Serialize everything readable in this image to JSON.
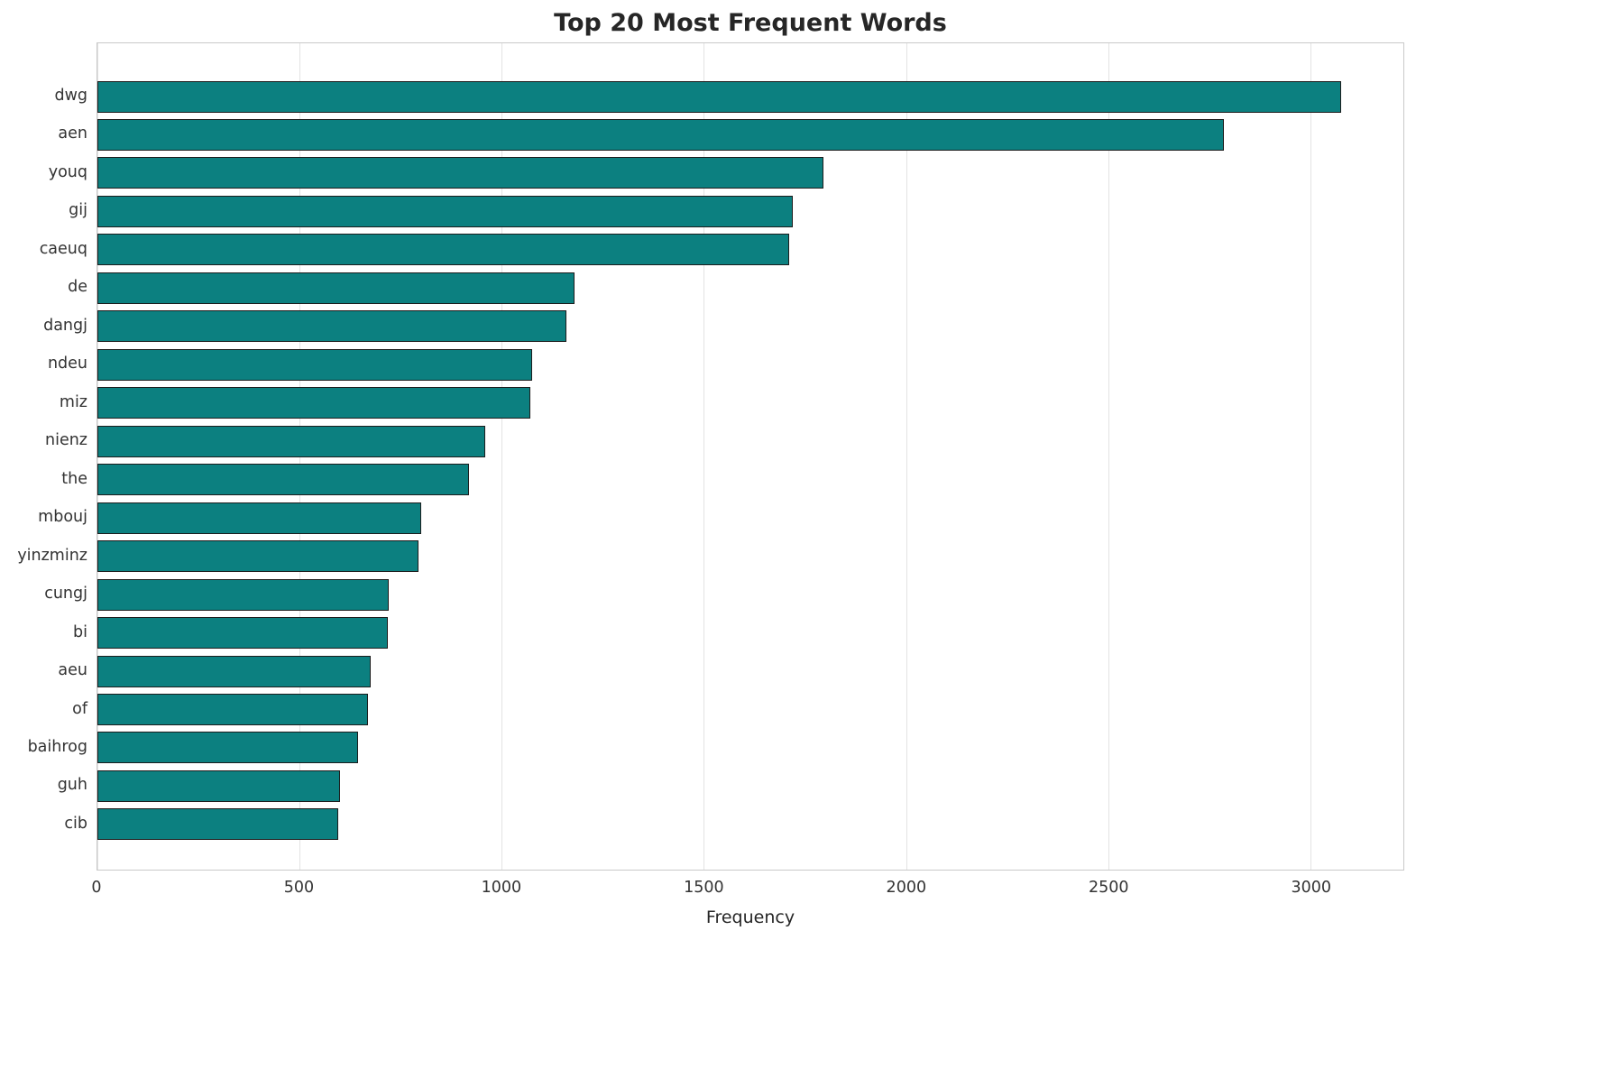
{
  "chart_data": {
    "type": "bar",
    "orientation": "horizontal",
    "title": "Top 20 Most Frequent Words",
    "xlabel": "Frequency",
    "ylabel": "",
    "categories": [
      "dwg",
      "aen",
      "youq",
      "gij",
      "caeuq",
      "de",
      "dangj",
      "ndeu",
      "miz",
      "nienz",
      "the",
      "mbouj",
      "yinzminz",
      "cungj",
      "bi",
      "aeu",
      "of",
      "baihrog",
      "guh",
      "cib"
    ],
    "values": [
      3075,
      2785,
      1795,
      1720,
      1710,
      1180,
      1160,
      1075,
      1070,
      960,
      920,
      800,
      795,
      720,
      718,
      675,
      670,
      645,
      600,
      595
    ],
    "xlim": [
      0,
      3230
    ],
    "xticks": [
      0,
      500,
      1000,
      1500,
      2000,
      2500,
      3000
    ],
    "grid": "vertical",
    "legend": "none",
    "bar_color": "#0c8080",
    "bar_edge_color": "#1c1c1c",
    "grid_color": "#e3e3e3",
    "background_color": "#ffffff"
  }
}
